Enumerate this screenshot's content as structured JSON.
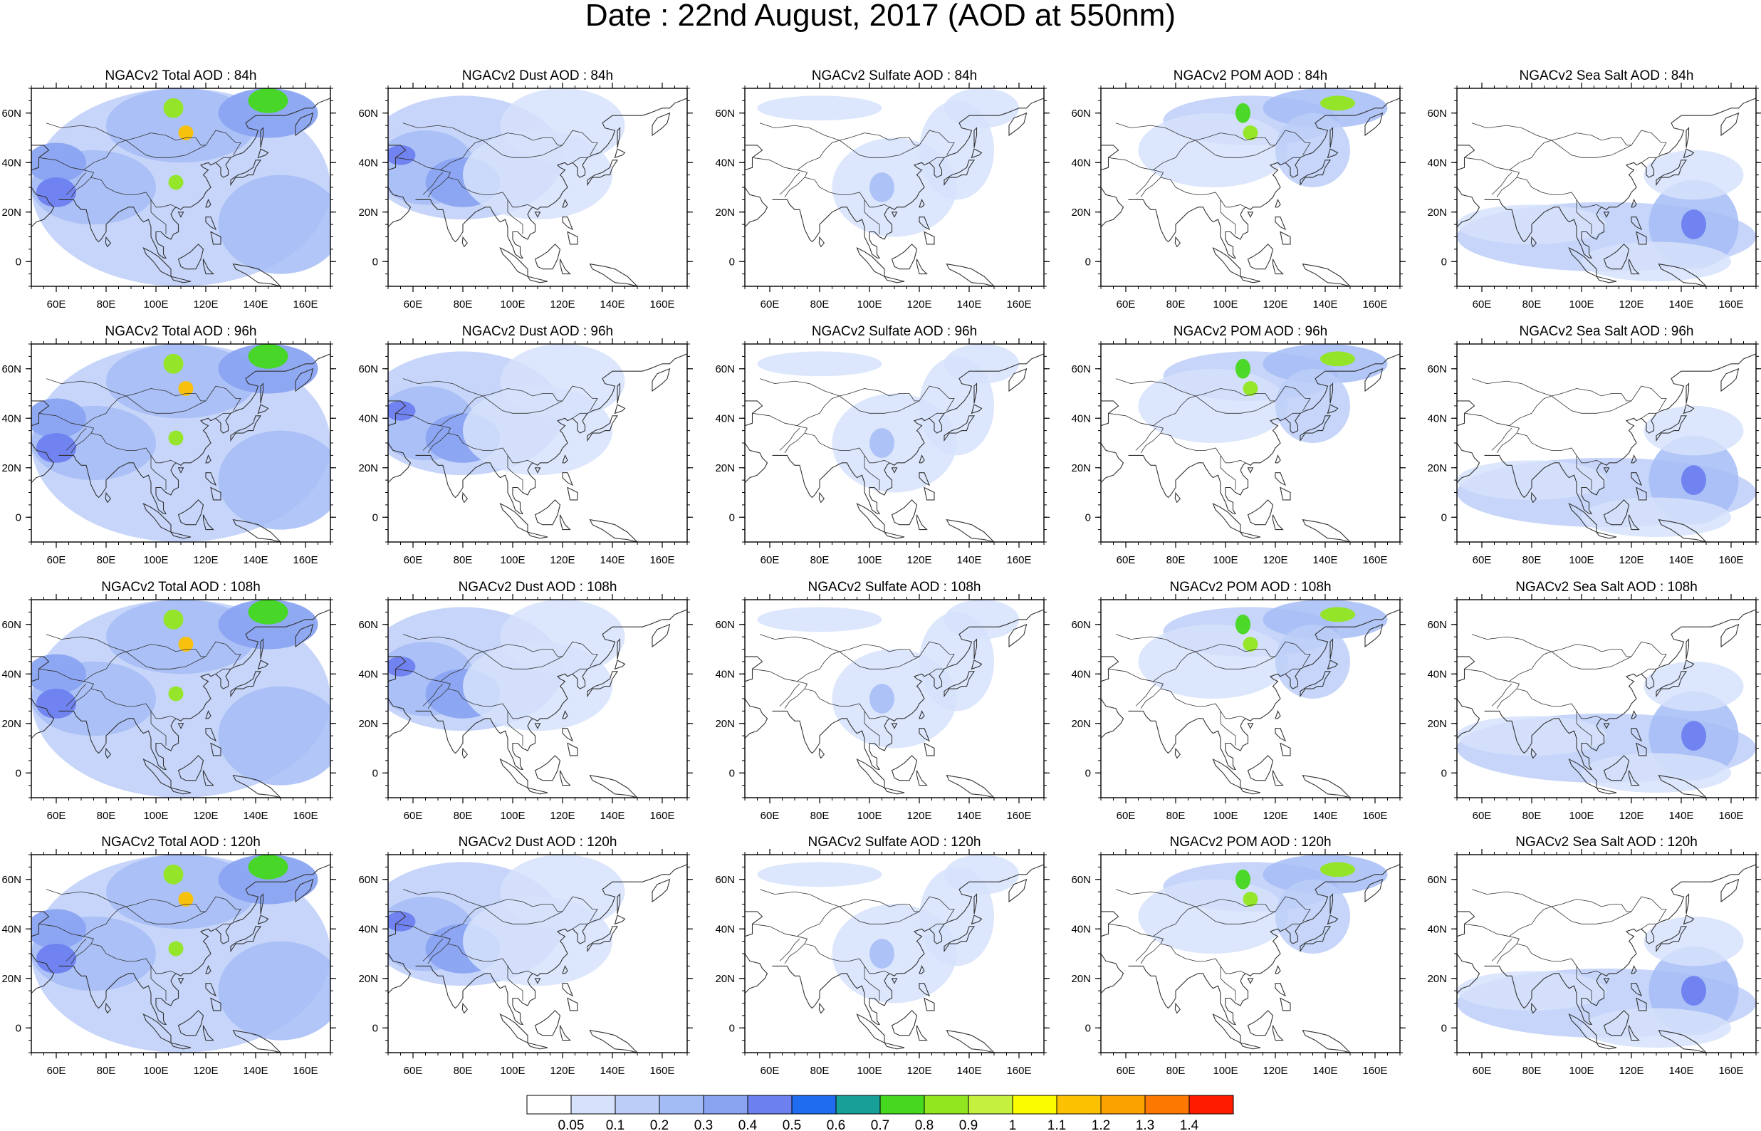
{
  "title": "Date : 22nd August, 2017 (AOD at 550nm)",
  "map": {
    "lon_range": [
      50,
      170
    ],
    "lat_range": [
      -10,
      70
    ],
    "lon_ticks": [
      60,
      80,
      100,
      120,
      140,
      160
    ],
    "lon_tick_labels": [
      "60E",
      "80E",
      "100E",
      "120E",
      "140E",
      "160E"
    ],
    "lat_ticks": [
      0,
      20,
      40,
      60
    ],
    "lat_tick_labels": [
      "0",
      "20N",
      "40N",
      "60N"
    ]
  },
  "panels": [
    [
      {
        "title": "NGACv2 Total AOD : 84h",
        "species": "total"
      },
      {
        "title": "NGACv2 Dust AOD : 84h",
        "species": "dust"
      },
      {
        "title": "NGACv2 Sulfate AOD : 84h",
        "species": "sulfate"
      },
      {
        "title": "NGACv2 POM AOD : 84h",
        "species": "pom"
      },
      {
        "title": "NGACv2 Sea Salt AOD : 84h",
        "species": "seasalt"
      }
    ],
    [
      {
        "title": "NGACv2 Total AOD : 96h",
        "species": "total"
      },
      {
        "title": "NGACv2 Dust AOD : 96h",
        "species": "dust"
      },
      {
        "title": "NGACv2 Sulfate AOD : 96h",
        "species": "sulfate"
      },
      {
        "title": "NGACv2 POM AOD : 96h",
        "species": "pom"
      },
      {
        "title": "NGACv2 Sea Salt AOD : 96h",
        "species": "seasalt"
      }
    ],
    [
      {
        "title": "NGACv2 Total AOD : 108h",
        "species": "total"
      },
      {
        "title": "NGACv2 Dust AOD : 108h",
        "species": "dust"
      },
      {
        "title": "NGACv2 Sulfate AOD : 108h",
        "species": "sulfate"
      },
      {
        "title": "NGACv2 POM AOD : 108h",
        "species": "pom"
      },
      {
        "title": "NGACv2 Sea Salt AOD : 108h",
        "species": "seasalt"
      }
    ],
    [
      {
        "title": "NGACv2 Total AOD : 120h",
        "species": "total"
      },
      {
        "title": "NGACv2 Dust AOD : 120h",
        "species": "dust"
      },
      {
        "title": "NGACv2 Sulfate AOD : 120h",
        "species": "sulfate"
      },
      {
        "title": "NGACv2 POM AOD : 120h",
        "species": "pom"
      },
      {
        "title": "NGACv2 Sea Salt  AOD : 120h",
        "species": "seasalt"
      }
    ]
  ],
  "colorbar": {
    "labels": [
      "0.05",
      "0.1",
      "0.2",
      "0.3",
      "0.4",
      "0.5",
      "0.6",
      "0.7",
      "0.8",
      "0.9",
      "1",
      "1.1",
      "1.2",
      "1.3",
      "1.4"
    ],
    "colors": [
      "#ffffff",
      "#d6e2fb",
      "#bccef8",
      "#a4bcf6",
      "#8aa4f2",
      "#6d80ef",
      "#1f6cf0",
      "#17a098",
      "#45d81e",
      "#92e61f",
      "#c4f040",
      "#fbfc00",
      "#fcc100",
      "#fca200",
      "#fd7800",
      "#ff1b00"
    ]
  }
}
